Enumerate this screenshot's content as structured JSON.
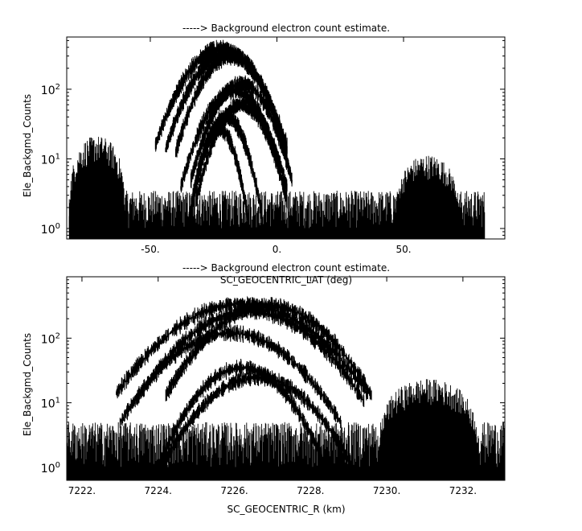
{
  "chart_data": [
    {
      "type": "line",
      "title": "-----> Background electron count estimate.",
      "xlabel": "SC_GEOCENTRIC_LAT (deg)",
      "ylabel": "Ele_Backgmd_Counts",
      "xlim": [
        -83,
        90
      ],
      "ylim_log10": [
        -0.15,
        2.75
      ],
      "y_scale": "log",
      "x_ticks": [
        {
          "value": -50,
          "label": "-50."
        },
        {
          "value": 0,
          "label": "0."
        },
        {
          "value": 50,
          "label": "50."
        }
      ],
      "y_ticks": [
        {
          "value": 1,
          "base": "10",
          "exp": "0"
        },
        {
          "value": 10,
          "base": "10",
          "exp": "1"
        },
        {
          "value": 100,
          "base": "10",
          "exp": "2"
        }
      ],
      "grid": false,
      "legend": "none",
      "noise_floor": {
        "x_range": [
          -82,
          82
        ],
        "min": 0.7,
        "max": 3.5
      },
      "side_bands": [
        {
          "x_range": [
            -82,
            -60
          ],
          "peak": 20
        },
        {
          "x_range": [
            47,
            72
          ],
          "peak": 10
        }
      ],
      "series": [
        {
          "center": -22,
          "half_width": 26,
          "peak": 380
        },
        {
          "center": -20,
          "half_width": 24,
          "peak": 330
        },
        {
          "center": -18,
          "half_width": 22,
          "peak": 300
        },
        {
          "center": -14,
          "half_width": 20,
          "peak": 120
        },
        {
          "center": -17,
          "half_width": 21,
          "peak": 95
        },
        {
          "center": -14,
          "half_width": 18,
          "peak": 60
        },
        {
          "center": -20,
          "half_width": 14,
          "peak": 40
        },
        {
          "center": -23,
          "half_width": 12,
          "peak": 28
        }
      ]
    },
    {
      "type": "line",
      "title": "-----> Background electron count estimate.",
      "xlabel": "SC_GEOCENTRIC_R (km)",
      "ylabel": "Ele_Backgmd_Counts",
      "xlim": [
        7221.6,
        7233.1
      ],
      "ylim_log10": [
        -0.2,
        2.95
      ],
      "y_scale": "log",
      "x_ticks": [
        {
          "value": 7222,
          "label": "7222."
        },
        {
          "value": 7224,
          "label": "7224."
        },
        {
          "value": 7226,
          "label": "7226."
        },
        {
          "value": 7228,
          "label": "7228."
        },
        {
          "value": 7230,
          "label": "7230."
        },
        {
          "value": 7232,
          "label": "7232."
        }
      ],
      "y_ticks": [
        {
          "value": 1,
          "base": "10",
          "exp": "0"
        },
        {
          "value": 10,
          "base": "10",
          "exp": "1"
        },
        {
          "value": 100,
          "base": "10",
          "exp": "2"
        }
      ],
      "grid": false,
      "legend": "none",
      "noise_floor": {
        "x_range": [
          7221.6,
          7233.1
        ],
        "min": 0.6,
        "max": 5
      },
      "side_bands": [
        {
          "x_range": [
            7229.8,
            7232.4
          ],
          "peak": 22
        }
      ],
      "series": [
        {
          "center": 7226.2,
          "half_width": 3.3,
          "peak": 340
        },
        {
          "center": 7226.9,
          "half_width": 2.7,
          "peak": 320
        },
        {
          "center": 7226.4,
          "half_width": 3.0,
          "peak": 260
        },
        {
          "center": 7225.9,
          "half_width": 2.9,
          "peak": 120
        },
        {
          "center": 7226.2,
          "half_width": 2.1,
          "peak": 35
        },
        {
          "center": 7226.6,
          "half_width": 2.5,
          "peak": 25
        }
      ]
    }
  ]
}
